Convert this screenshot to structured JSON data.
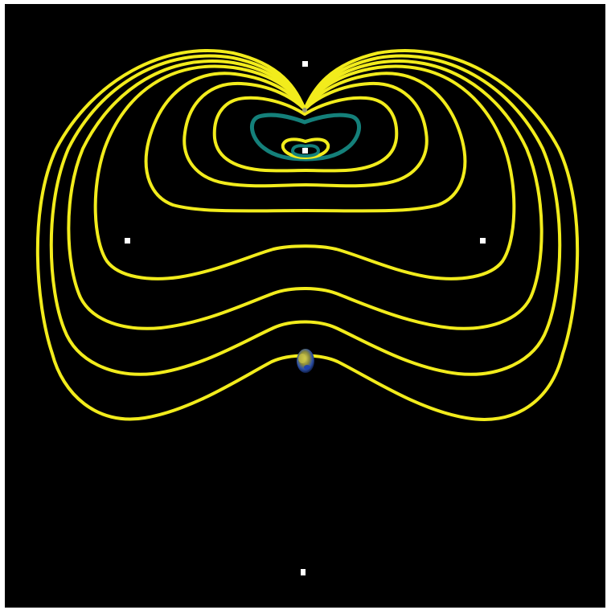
{
  "scene": {
    "background_color": "#000000",
    "contour_colors": {
      "outer": "#f2ec1c",
      "inner": "#14807a"
    },
    "marker_color": "#ffffff",
    "planet": {
      "name": "earth",
      "colors": [
        "#c8c244",
        "#1a3fb5",
        "#2a5d2a"
      ]
    },
    "lagrange_points": [
      "L1",
      "L2",
      "L3",
      "L4",
      "L5"
    ],
    "outer_contour_count": 7,
    "inner_contour_count": 2
  }
}
